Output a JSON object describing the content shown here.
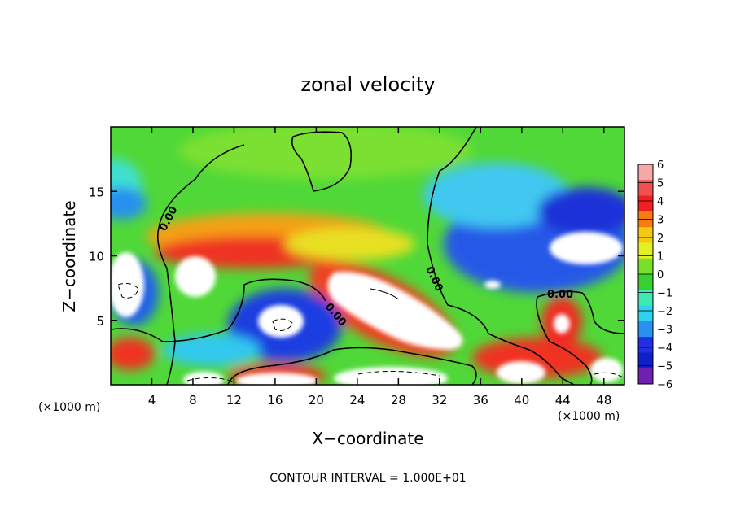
{
  "chart_data": {
    "type": "heatmap",
    "title": "zonal velocity",
    "xlabel": "X−coordinate",
    "ylabel": "Z−coordinate",
    "x_unit_left": "(×1000 m)",
    "x_unit_right": "(×1000 m)",
    "xlim": [
      0,
      50
    ],
    "ylim": [
      0,
      20
    ],
    "x_ticks": [
      4,
      8,
      12,
      16,
      20,
      24,
      28,
      32,
      36,
      40,
      44,
      48
    ],
    "y_ticks": [
      5,
      10,
      15
    ],
    "colorbar": {
      "levels": [
        6,
        5,
        4,
        3,
        2,
        1,
        0,
        -1,
        -2,
        -3,
        -4,
        -5,
        -6
      ],
      "labels": [
        "6",
        "5",
        "4",
        "3",
        "2",
        "1",
        "0",
        "−1",
        "−2",
        "−3",
        "−4",
        "−5",
        "−6"
      ],
      "colors": [
        "#f5a8a8",
        "#f25050",
        "#f02020",
        "#f57d10",
        "#f5c814",
        "#e0f020",
        "#78e028",
        "#38d030",
        "#40e8b4",
        "#30d0f0",
        "#2890f0",
        "#2030e0",
        "#1020c8",
        "#7020b0"
      ],
      "over_color": "#ffffff"
    },
    "contour_labels": [
      "0.00",
      "0.00",
      "0.00",
      "0.00"
    ],
    "contour_interval_text": "CONTOUR INTERVAL = 1.000E+01"
  }
}
